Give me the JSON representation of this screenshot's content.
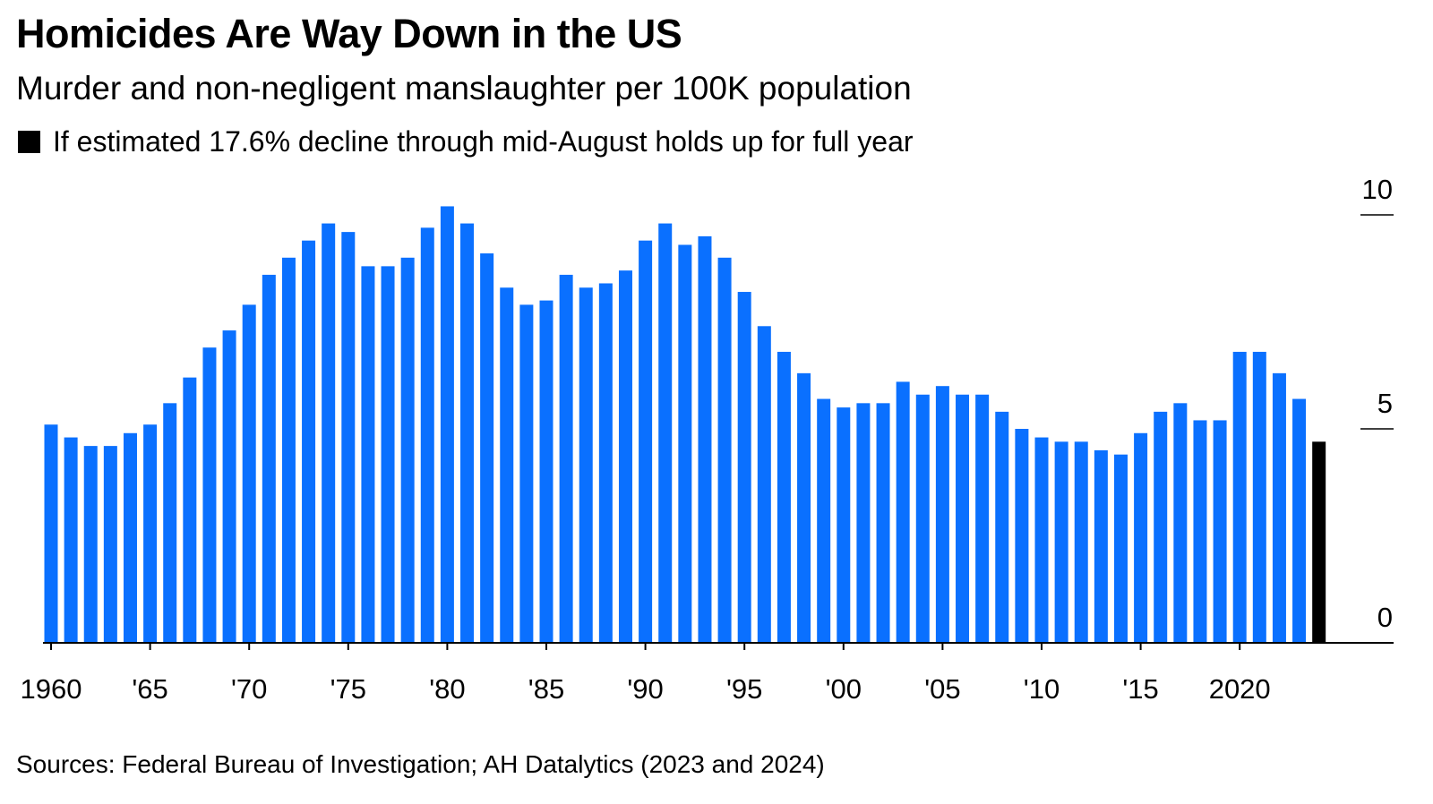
{
  "title": "Homicides Are Way Down in the US",
  "subtitle": "Murder and non-negligent manslaughter per 100K population",
  "legend": {
    "label": "If estimated 17.6% decline through mid-August holds up for full year",
    "color": "#000000"
  },
  "source": "Sources: Federal Bureau of Investigation; AH Datalytics (2023 and 2024)",
  "chart_data": {
    "type": "bar",
    "ylim": [
      0,
      10
    ],
    "yticks": [
      {
        "value": 0,
        "label": "0"
      },
      {
        "value": 5,
        "label": "5"
      },
      {
        "value": 10,
        "label": "10"
      }
    ],
    "xticks": [
      {
        "year": 1960,
        "label": "1960"
      },
      {
        "year": 1965,
        "label": "'65"
      },
      {
        "year": 1970,
        "label": "'70"
      },
      {
        "year": 1975,
        "label": "'75"
      },
      {
        "year": 1980,
        "label": "'80"
      },
      {
        "year": 1985,
        "label": "'85"
      },
      {
        "year": 1990,
        "label": "'90"
      },
      {
        "year": 1995,
        "label": "'95"
      },
      {
        "year": 2000,
        "label": "'00"
      },
      {
        "year": 2005,
        "label": "'05"
      },
      {
        "year": 2010,
        "label": "'10"
      },
      {
        "year": 2015,
        "label": "'15"
      },
      {
        "year": 2020,
        "label": "2020"
      }
    ],
    "bar_color": "#0A70FF",
    "estimate_color": "#000000",
    "series": [
      {
        "years": [
          1960,
          1961,
          1962,
          1963,
          1964,
          1965,
          1966,
          1967,
          1968,
          1969,
          1970,
          1971,
          1972,
          1973,
          1974,
          1975,
          1976,
          1977,
          1978,
          1979,
          1980,
          1981,
          1982,
          1983,
          1984,
          1985,
          1986,
          1987,
          1988,
          1989,
          1990,
          1991,
          1992,
          1993,
          1994,
          1995,
          1996,
          1997,
          1998,
          1999,
          2000,
          2001,
          2002,
          2003,
          2004,
          2005,
          2006,
          2007,
          2008,
          2009,
          2010,
          2011,
          2012,
          2013,
          2014,
          2015,
          2016,
          2017,
          2018,
          2019,
          2020,
          2021,
          2022,
          2023
        ],
        "values": [
          5.1,
          4.8,
          4.6,
          4.6,
          4.9,
          5.1,
          5.6,
          6.2,
          6.9,
          7.3,
          7.9,
          8.6,
          9.0,
          9.4,
          9.8,
          9.6,
          8.8,
          8.8,
          9.0,
          9.7,
          10.2,
          9.8,
          9.1,
          8.3,
          7.9,
          8.0,
          8.6,
          8.3,
          8.4,
          8.7,
          9.4,
          9.8,
          9.3,
          9.5,
          9.0,
          8.2,
          7.4,
          6.8,
          6.3,
          5.7,
          5.5,
          5.6,
          5.6,
          6.1,
          5.8,
          6.0,
          5.8,
          5.8,
          5.4,
          5.0,
          4.8,
          4.7,
          4.7,
          4.5,
          4.4,
          4.9,
          5.4,
          5.6,
          5.2,
          5.2,
          6.8,
          6.8,
          6.3,
          5.7
        ]
      },
      {
        "years": [
          2024
        ],
        "values": [
          4.7
        ]
      }
    ]
  }
}
